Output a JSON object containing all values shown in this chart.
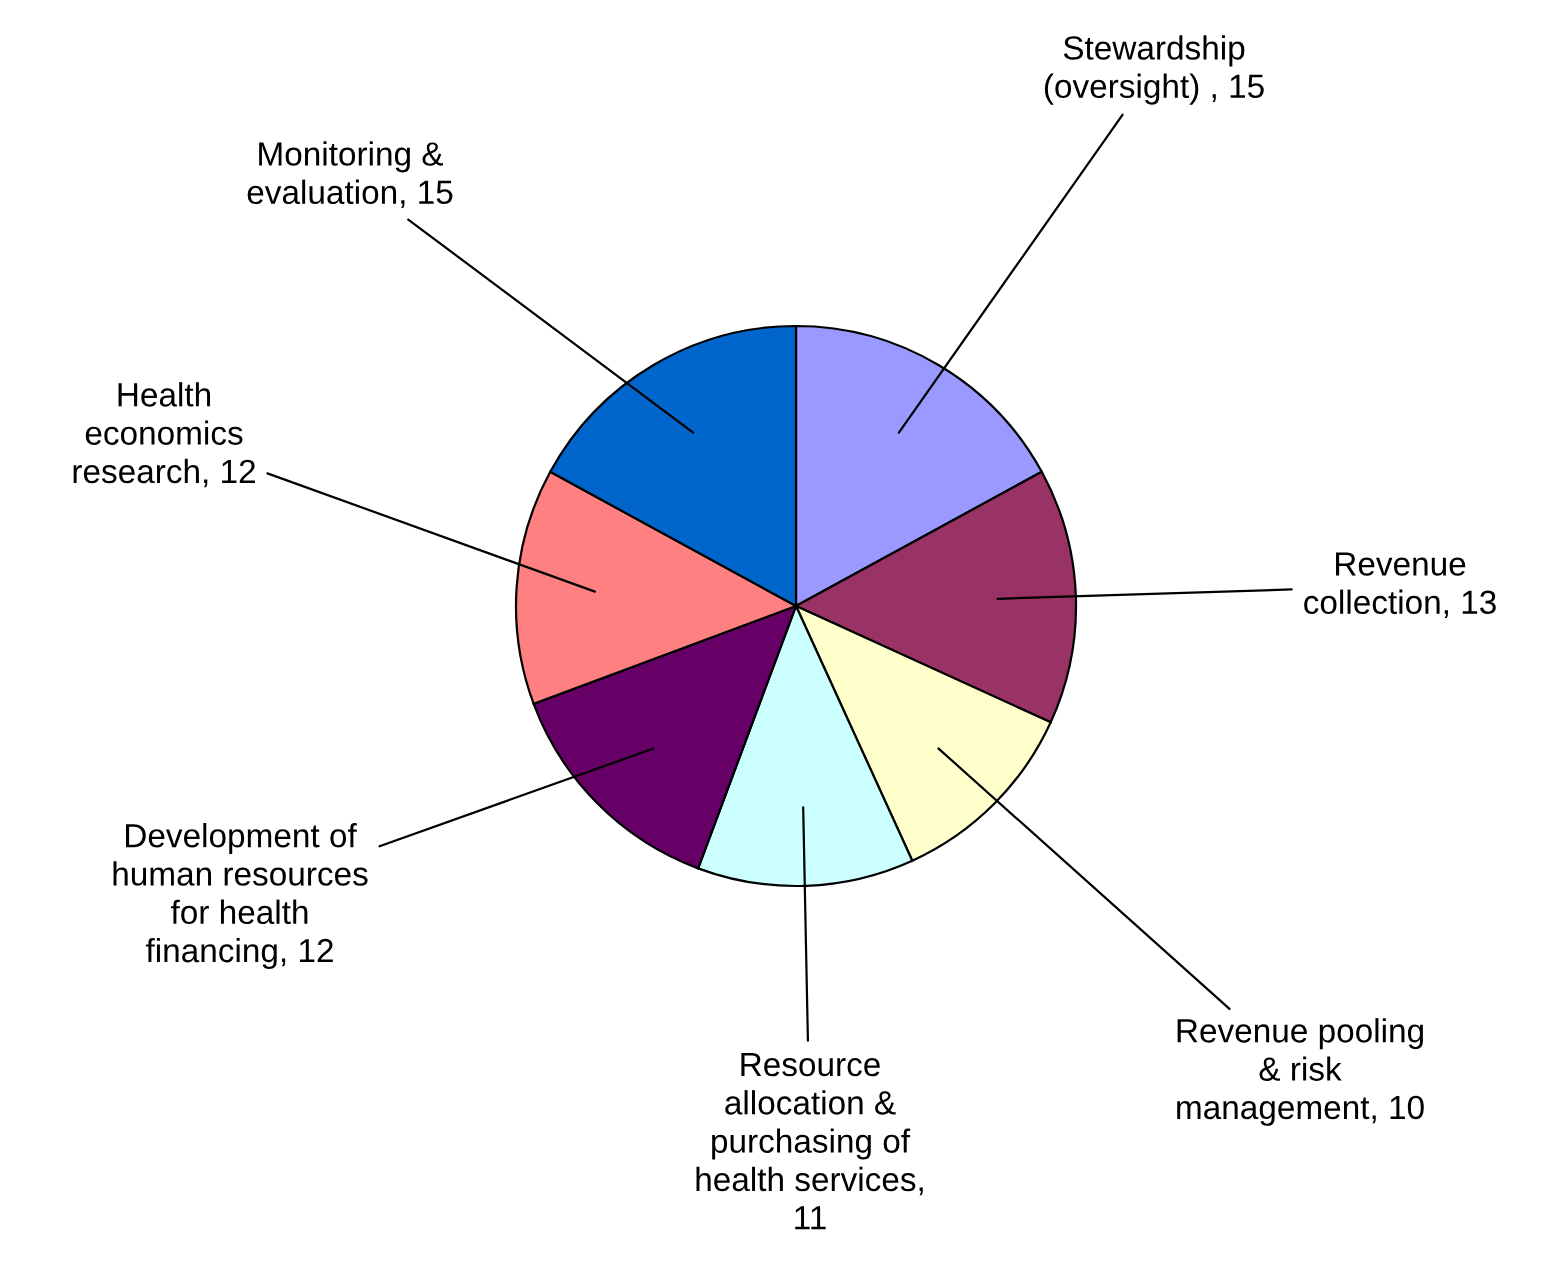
{
  "chart_data": {
    "type": "pie",
    "categories": [
      "Stewardship (oversight) , 15",
      "Revenue collection, 13",
      "Revenue pooling & risk management, 10",
      "Resource allocation & purchasing of health services, 11",
      "Development of human resources for health financing, 12",
      "Health economics research, 12",
      "Monitoring & evaluation, 15"
    ],
    "values": [
      15,
      13,
      10,
      11,
      12,
      12,
      15
    ],
    "colors": [
      "#9999ff",
      "#993366",
      "#ffffcc",
      "#ccffff",
      "#660066",
      "#ff8080",
      "#0066cc"
    ],
    "legend": false
  }
}
